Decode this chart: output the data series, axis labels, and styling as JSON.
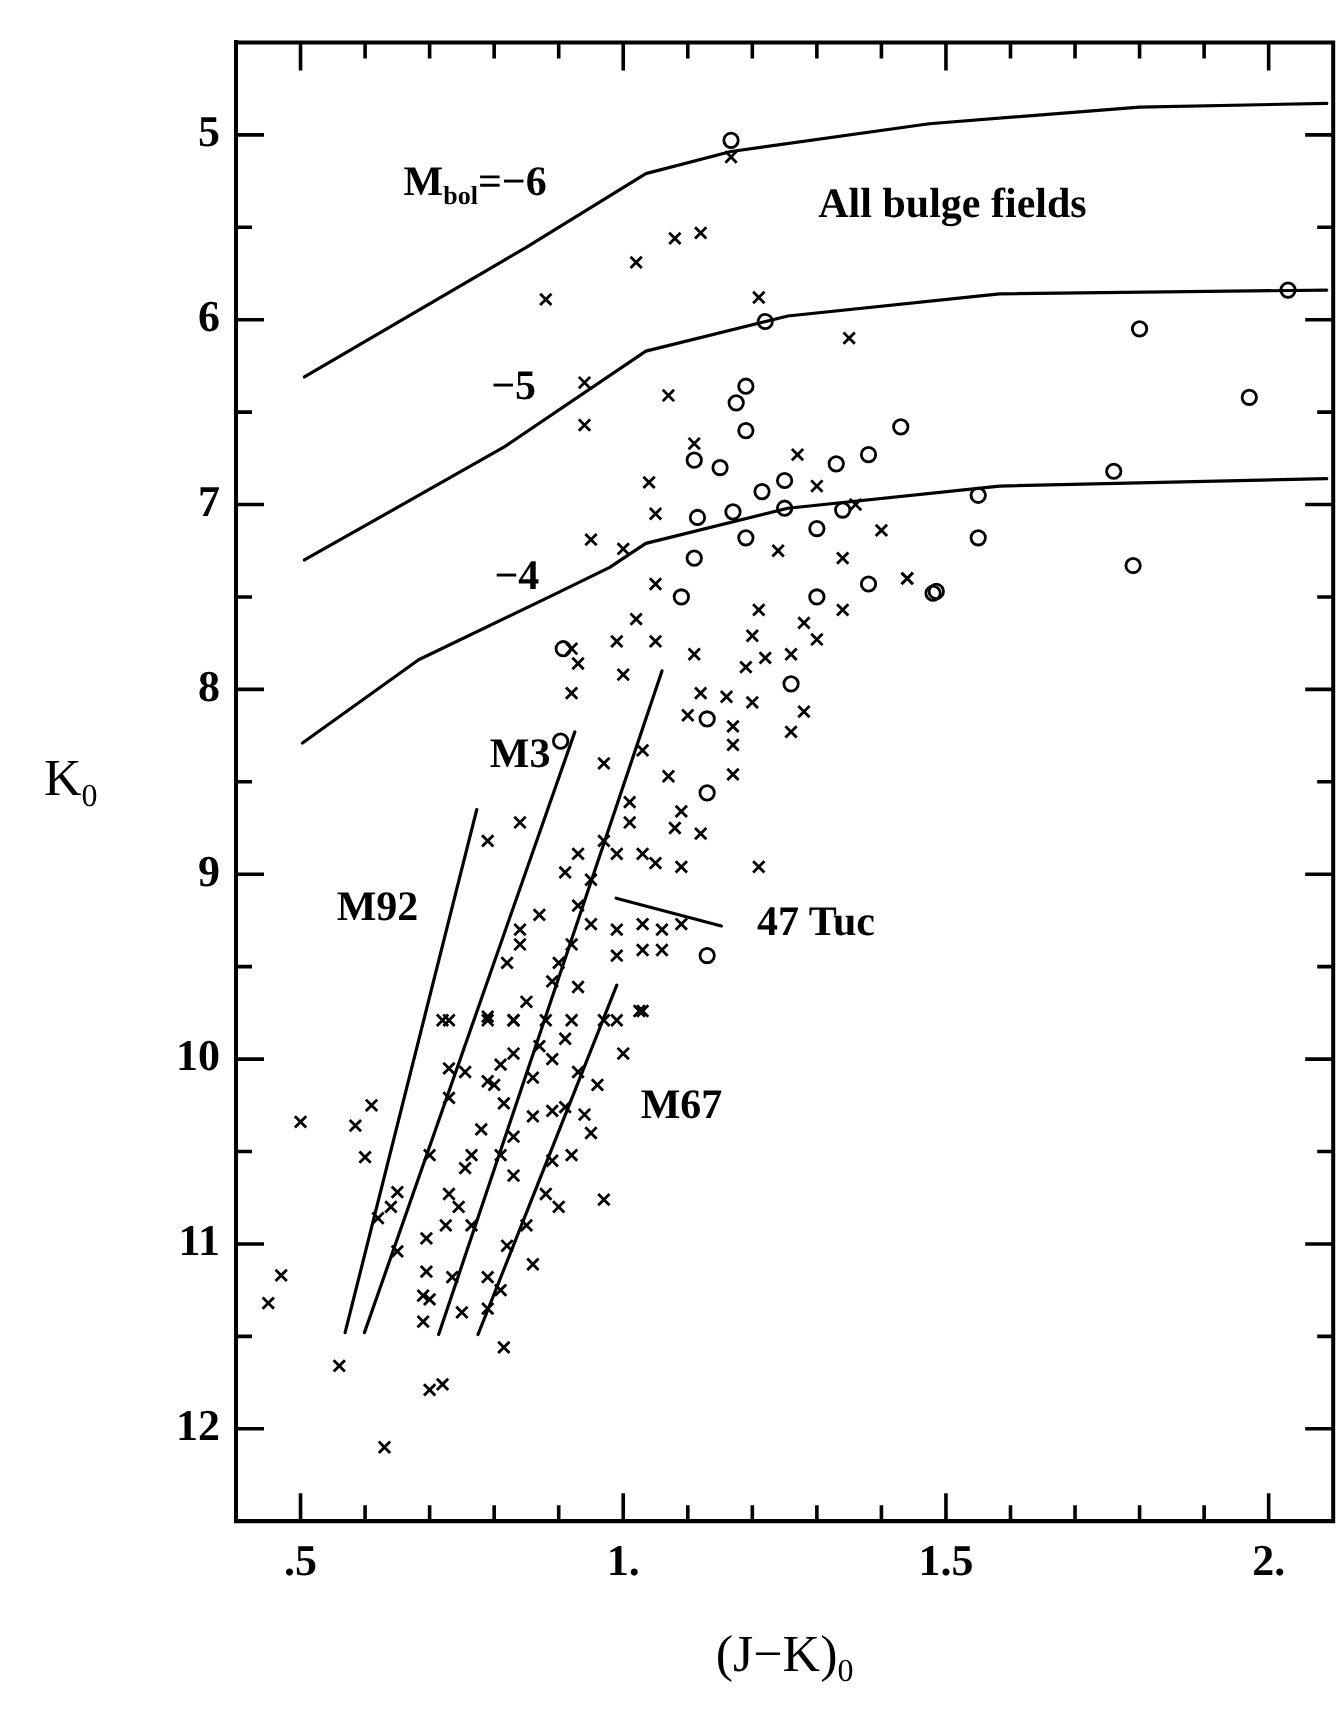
{
  "chart_data": {
    "type": "scatter",
    "xlabel": "(J−K)$_{0}$",
    "ylabel": "K$_{0}$",
    "xlim": [
      0.4,
      2.1
    ],
    "ylim": [
      12.5,
      4.5
    ],
    "xticks": [
      {
        "value": 0.5,
        "label": ".5"
      },
      {
        "value": 0.6,
        "label": null
      },
      {
        "value": 0.7,
        "label": null
      },
      {
        "value": 0.8,
        "label": null
      },
      {
        "value": 0.9,
        "label": null
      },
      {
        "value": 1,
        "label": "1."
      },
      {
        "value": 1.1,
        "label": null
      },
      {
        "value": 1.2,
        "label": null
      },
      {
        "value": 1.3,
        "label": null
      },
      {
        "value": 1.4,
        "label": null
      },
      1.5,
      {
        "value": 1.6,
        "label": null
      },
      {
        "value": 1.7,
        "label": null
      },
      {
        "value": 1.8,
        "label": null
      },
      {
        "value": 1.9,
        "label": null
      },
      {
        "value": 2,
        "label": "2."
      }
    ],
    "yticks": [
      5,
      {
        "value": 5.5,
        "label": null
      },
      6,
      {
        "value": 6.5,
        "label": null
      },
      7,
      {
        "value": 7.5,
        "label": null
      },
      8,
      {
        "value": 8.5,
        "label": null
      },
      9,
      {
        "value": 9.5,
        "label": null
      },
      10,
      {
        "value": 10.5,
        "label": null
      },
      11,
      {
        "value": 11.5,
        "label": null
      },
      12
    ],
    "series": [
      {
        "type": "scatter",
        "marker": "cross",
        "color": "#000000",
        "x": [
          1.167,
          0.88,
          1.02,
          1.08,
          1.12,
          1.21,
          1.35,
          0.94,
          0.94,
          1.07,
          1.04,
          1.11,
          1.27,
          1.3,
          1.05,
          1.4,
          1.44,
          0.95,
          1.0,
          1.36,
          1.34,
          1.24,
          1.05,
          1.02,
          0.99,
          0.93,
          0.92,
          1.0,
          1.05,
          1.11,
          1.1,
          1.12,
          1.19,
          1.22,
          1.26,
          1.21,
          1.2,
          1.28,
          1.3,
          1.34,
          1.44,
          1.16,
          1.2,
          1.28,
          1.26,
          1.17,
          1.17,
          1.17,
          0.97,
          1.03,
          1.07,
          1.01,
          1.09,
          1.12,
          1.08,
          1.01,
          0.97,
          0.93,
          0.91,
          0.99,
          1.03,
          1.05,
          1.09,
          1.21,
          0.95,
          0.93,
          0.95,
          0.99,
          1.03,
          1.06,
          1.09,
          0.87,
          0.84,
          0.84,
          0.82,
          0.92,
          0.9,
          0.99,
          1.03,
          1.06,
          0.89,
          0.93,
          0.85,
          0.92,
          0.88,
          0.97,
          1.03,
          0.79,
          0.83,
          0.73,
          0.84,
          0.79,
          0.92,
          1.025,
          1.0,
          0.96,
          0.94,
          0.95,
          0.91,
          0.89,
          0.86,
          0.92,
          0.89,
          0.88,
          0.9,
          0.97,
          0.86,
          0.85,
          0.82,
          0.815,
          0.81,
          0.79,
          0.79,
          0.83,
          0.83,
          0.81,
          0.815,
          0.8,
          0.78,
          0.765,
          0.755,
          0.745,
          0.765,
          0.735,
          0.75,
          0.725,
          0.73,
          0.695,
          0.695,
          0.69,
          0.7,
          0.69,
          0.7,
          0.72,
          0.63,
          0.56,
          0.45,
          0.47,
          0.5,
          0.585,
          0.61,
          0.6,
          0.65,
          0.64,
          0.65,
          0.62,
          0.7,
          0.73,
          0.73,
          0.72,
          0.79,
          0.83,
          0.755,
          0.79,
          0.81,
          0.83,
          0.86,
          0.87,
          0.89,
          0.91,
          0.93,
          0.99
        ],
        "values": [
          5.12,
          5.89,
          5.69,
          5.56,
          5.53,
          5.88,
          6.1,
          6.34,
          6.57,
          6.41,
          6.88,
          6.67,
          6.73,
          6.9,
          7.05,
          7.14,
          7.4,
          7.19,
          7.24,
          7.0,
          7.29,
          7.25,
          7.43,
          7.62,
          7.74,
          7.86,
          8.02,
          7.92,
          7.74,
          7.81,
          8.14,
          8.02,
          7.88,
          7.83,
          7.81,
          7.57,
          7.71,
          7.64,
          7.73,
          7.57,
          7.4,
          8.04,
          8.07,
          8.12,
          8.23,
          8.2,
          8.3,
          8.46,
          8.4,
          8.33,
          8.47,
          8.61,
          8.66,
          8.78,
          8.75,
          8.72,
          8.82,
          8.89,
          8.99,
          8.89,
          8.89,
          8.94,
          8.96,
          8.96,
          9.03,
          9.17,
          9.27,
          9.3,
          9.27,
          9.3,
          9.27,
          9.22,
          9.3,
          9.38,
          9.48,
          9.38,
          9.48,
          9.44,
          9.41,
          9.41,
          9.58,
          9.61,
          9.69,
          9.79,
          9.79,
          9.79,
          9.74,
          9.79,
          9.79,
          9.79,
          8.72,
          8.82,
          7.78,
          9.74,
          9.97,
          10.14,
          10.3,
          10.4,
          10.26,
          10.28,
          10.31,
          10.52,
          10.55,
          10.73,
          10.8,
          10.76,
          11.11,
          10.9,
          11.01,
          11.56,
          11.25,
          11.18,
          11.35,
          10.63,
          10.42,
          10.52,
          10.24,
          10.14,
          10.38,
          10.52,
          10.59,
          10.8,
          10.9,
          11.18,
          11.37,
          10.9,
          10.73,
          10.97,
          11.15,
          11.28,
          11.3,
          11.42,
          11.79,
          11.76,
          12.1,
          11.66,
          11.32,
          11.17,
          10.34,
          10.36,
          10.25,
          10.53,
          10.72,
          10.8,
          11.04,
          10.86,
          10.52,
          10.21,
          10.05,
          9.79,
          9.77,
          9.79,
          10.07,
          10.12,
          10.03,
          9.97,
          10.1,
          9.93,
          10.0,
          9.89,
          10.07,
          9.79
        ]
      },
      {
        "type": "scatter",
        "marker": "circle",
        "color": "#000000",
        "x": [
          1.167,
          1.22,
          1.19,
          1.175,
          1.19,
          1.11,
          1.15,
          1.215,
          1.25,
          1.33,
          1.38,
          1.43,
          1.8,
          1.97,
          2.03,
          1.76,
          1.55,
          1.55,
          1.79,
          1.115,
          1.17,
          1.25,
          1.19,
          1.11,
          1.34,
          1.3,
          1.485,
          0.907,
          1.48,
          1.38,
          1.3,
          1.13,
          1.26,
          1.13,
          1.13,
          1.09,
          0.903
        ],
        "values": [
          5.03,
          6.01,
          6.36,
          6.45,
          6.6,
          6.76,
          6.8,
          6.93,
          6.87,
          6.78,
          6.73,
          6.58,
          6.05,
          6.42,
          5.84,
          6.82,
          6.95,
          7.18,
          7.33,
          7.07,
          7.04,
          7.02,
          7.18,
          7.29,
          7.03,
          7.13,
          7.47,
          7.78,
          7.48,
          7.43,
          7.5,
          8.56,
          7.97,
          8.16,
          9.44,
          7.5,
          8.28
        ]
      },
      {
        "type": "line",
        "color": "#000000",
        "x": [
          0.506,
          0.849,
          1.035,
          1.167,
          1.474,
          1.8,
          2.09
        ],
        "values": [
          6.31,
          5.61,
          5.21,
          5.09,
          4.94,
          4.85,
          4.83
        ]
      },
      {
        "type": "line",
        "color": "#000000",
        "x": [
          0.506,
          0.815,
          1.035,
          1.255,
          1.583,
          2.09
        ],
        "values": [
          7.3,
          6.69,
          6.17,
          5.98,
          5.86,
          5.84
        ]
      },
      {
        "type": "line",
        "color": "#000000",
        "x": [
          0.503,
          0.683,
          0.891,
          0.979,
          1.035,
          1.255,
          1.583,
          2.09
        ],
        "values": [
          8.29,
          7.84,
          7.49,
          7.34,
          7.21,
          7.02,
          6.9,
          6.86
        ]
      },
      {
        "type": "line",
        "color": "#000000",
        "x": [
          0.569,
          0.773
        ],
        "values": [
          11.48,
          8.65
        ]
      },
      {
        "type": "line",
        "color": "#000000",
        "x": [
          0.599,
          0.925
        ],
        "values": [
          11.48,
          8.23
        ]
      },
      {
        "type": "line",
        "color": "#000000",
        "x": [
          0.714,
          1.06
        ],
        "values": [
          11.49,
          7.9
        ]
      },
      {
        "type": "line",
        "color": "#000000",
        "x": [
          0.775,
          0.99
        ],
        "values": [
          11.49,
          9.6
        ]
      },
      {
        "type": "line",
        "color": "#000000",
        "x": [
          0.989,
          1.152
        ],
        "values": [
          9.13,
          9.28
        ]
      }
    ],
    "annotations": [
      "All bulge fields",
      "M$_{bol}$=−6",
      "−5",
      "−4",
      "M92",
      "M3",
      "47 Tuc",
      "M67"
    ]
  }
}
